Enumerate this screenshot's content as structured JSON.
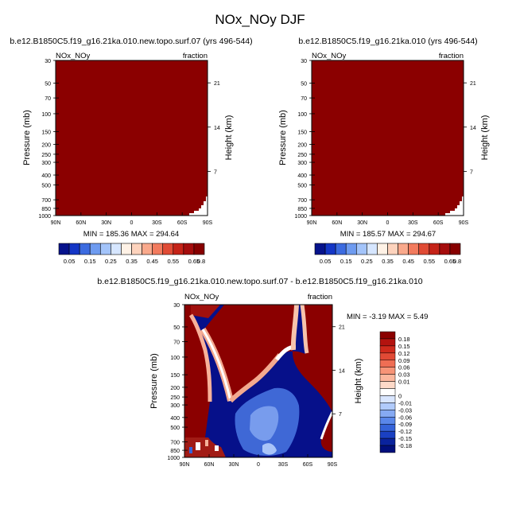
{
  "figure": {
    "title": "NOx_NOy DJF"
  },
  "chart_data": [
    {
      "type": "heatmap",
      "title": "b.e12.B1850C5.f19_g16.21ka.010.new.topo.surf.07 (yrs 496-544)",
      "left_label": "NOx_NOy",
      "right_label": "fraction",
      "ylabel": "Pressure (mb)",
      "y2label": "Height (km)",
      "x_ticks": [
        "90N",
        "60N",
        "30N",
        "0",
        "30S",
        "60S",
        "90S"
      ],
      "y_ticks": [
        "30",
        "50",
        "70",
        "100",
        "150",
        "200",
        "250",
        "300",
        "400",
        "500",
        "700",
        "850",
        "1000"
      ],
      "y2_ticks": [
        "21",
        "14",
        "7"
      ],
      "stats": "MIN = 185.36   MAX = 294.64",
      "min": 185.36,
      "max": 294.64,
      "field": "saturated above colorbar range"
    },
    {
      "type": "heatmap",
      "title": "b.e12.B1850C5.f19_g16.21ka.010 (yrs 496-544)",
      "left_label": "NOx_NOy",
      "right_label": "fraction",
      "ylabel": "Pressure (mb)",
      "y2label": "Height (km)",
      "x_ticks": [
        "90N",
        "60N",
        "30N",
        "0",
        "30S",
        "60S",
        "90S"
      ],
      "y_ticks": [
        "30",
        "50",
        "70",
        "100",
        "150",
        "200",
        "250",
        "300",
        "400",
        "500",
        "700",
        "850",
        "1000"
      ],
      "y2_ticks": [
        "21",
        "14",
        "7"
      ],
      "stats": "MIN = 185.57   MAX = 294.67",
      "min": 185.57,
      "max": 294.67,
      "field": "saturated above colorbar range"
    },
    {
      "type": "heatmap",
      "title": "b.e12.B1850C5.f19_g16.21ka.010.new.topo.surf.07 - b.e12.B1850C5.f19_g16.21ka.010",
      "left_label": "NOx_NOy",
      "right_label": "fraction",
      "ylabel": "Pressure (mb)",
      "y2label": "Height (km)",
      "x_ticks": [
        "90N",
        "60N",
        "30N",
        "0",
        "30S",
        "60S",
        "90S"
      ],
      "y_ticks": [
        "30",
        "50",
        "70",
        "100",
        "150",
        "200",
        "250",
        "300",
        "400",
        "500",
        "700",
        "850",
        "1000"
      ],
      "y2_ticks": [
        "21",
        "14",
        "7"
      ],
      "stats": "MIN =  -3.19   MAX =   5.49",
      "min": -3.19,
      "max": 5.49
    }
  ],
  "colorbar_top": {
    "labels": [
      "0.05",
      "0.15",
      "0.25",
      "0.35",
      "0.45",
      "0.55",
      "0.65",
      "0.8"
    ],
    "colors": [
      "#06138c",
      "#1436c6",
      "#3c6be0",
      "#6e9bf0",
      "#a3c4fa",
      "#d6e6ff",
      "#fff2e6",
      "#fdd3bd",
      "#f9a98c",
      "#f27b5e",
      "#e04b35",
      "#c52318",
      "#a50d0d",
      "#870000"
    ]
  },
  "colorbar_diff": {
    "labels": [
      "0.18",
      "0.15",
      "0.12",
      "0.09",
      "0.06",
      "0.03",
      "0.01",
      "0",
      "-0.01",
      "-0.03",
      "-0.06",
      "-0.09",
      "-0.12",
      "-0.15",
      "-0.18"
    ],
    "colors": [
      "#8b0000",
      "#b3130f",
      "#cf2a1c",
      "#e14a35",
      "#ef6e54",
      "#f79477",
      "#fbb79d",
      "#fdd9c8",
      "#ffffff",
      "#d9e6ff",
      "#b1cbfb",
      "#86aaf3",
      "#5a87ea",
      "#3563d9",
      "#1a40c2",
      "#0a239d",
      "#010f7c"
    ]
  }
}
